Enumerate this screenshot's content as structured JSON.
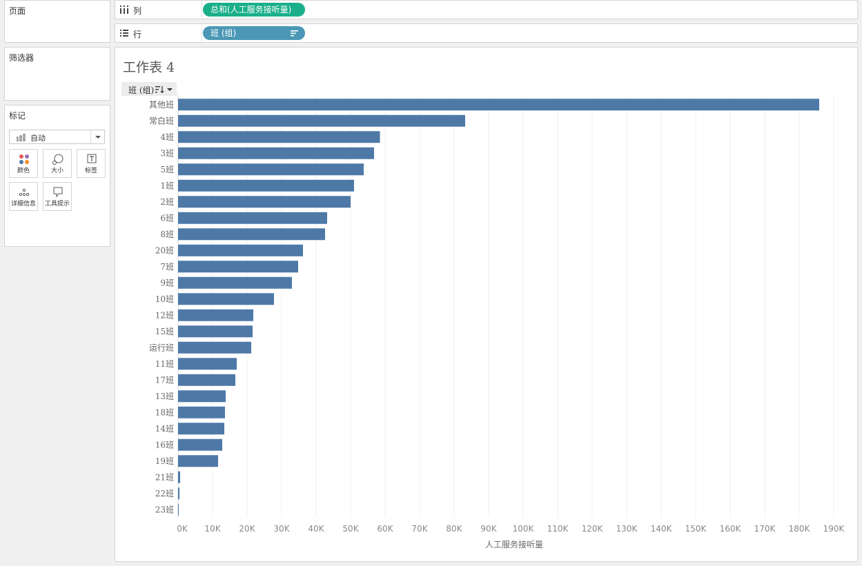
{
  "pages": {
    "title": "页面"
  },
  "filters": {
    "title": "筛选器"
  },
  "marks": {
    "title": "标记",
    "type_select": {
      "value": "自动",
      "icon": "bar-chart-icon"
    },
    "buttons": [
      {
        "label": "颜色",
        "icon": "color-dots-icon"
      },
      {
        "label": "大小",
        "icon": "size-icon"
      },
      {
        "label": "标签",
        "icon": "label-text-icon"
      },
      {
        "label": "详细信息",
        "icon": "detail-dots-icon"
      },
      {
        "label": "工具提示",
        "icon": "tooltip-icon"
      }
    ]
  },
  "columns_shelf": {
    "label": "列",
    "icon": "columns-icon",
    "pill": {
      "text": "总和(人工服务接听量)",
      "color": "#1aaf8a"
    }
  },
  "rows_shelf": {
    "label": "行",
    "icon": "rows-icon",
    "pill": {
      "text": "班 (组)",
      "color": "#4a98b5",
      "icon": "sort-descending-icon"
    }
  },
  "sheet": {
    "title": "工作表 4",
    "row_header": {
      "label": "班 (组)",
      "icon": "sort-icon"
    }
  },
  "chart_data": {
    "type": "bar",
    "orientation": "horizontal",
    "title": "工作表 4",
    "xlabel": "人工服务接听量",
    "ylabel": "班 (组)",
    "bar_color": "#4e79a7",
    "xlim": [
      0,
      190000
    ],
    "x_ticks": [
      0,
      10000,
      20000,
      30000,
      40000,
      50000,
      60000,
      70000,
      80000,
      90000,
      100000,
      110000,
      120000,
      130000,
      140000,
      150000,
      160000,
      170000,
      180000,
      190000
    ],
    "x_tick_labels": [
      "0K",
      "10K",
      "20K",
      "30K",
      "40K",
      "50K",
      "60K",
      "70K",
      "80K",
      "90K",
      "100K",
      "110K",
      "120K",
      "130K",
      "140K",
      "150K",
      "160K",
      "170K",
      "180K",
      "190K"
    ],
    "categories": [
      "其他班",
      "常白班",
      "4班",
      "3班",
      "5班",
      "1班",
      "2班",
      "6班",
      "8班",
      "20班",
      "7班",
      "9班",
      "10班",
      "12班",
      "15班",
      "运行班",
      "11班",
      "17班",
      "13班",
      "18班",
      "14班",
      "16班",
      "19班",
      "21班",
      "22班",
      "23班"
    ],
    "values": [
      185800,
      83200,
      58500,
      56800,
      53800,
      51000,
      50000,
      43200,
      42600,
      36200,
      34800,
      33000,
      27800,
      21800,
      21600,
      21200,
      17000,
      16600,
      13800,
      13600,
      13400,
      12800,
      11600,
      600,
      400,
      200
    ]
  }
}
